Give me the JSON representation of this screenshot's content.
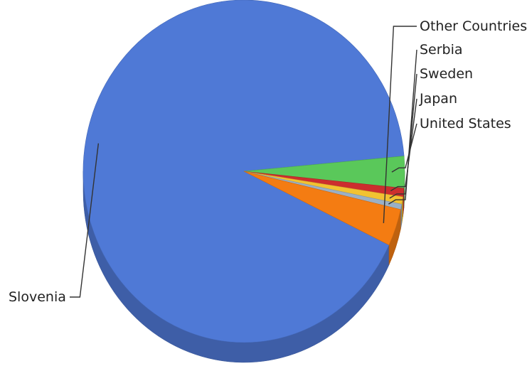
{
  "chart_data": {
    "type": "pie",
    "title": "",
    "slices": [
      {
        "name": "Slovenia",
        "value": 91.5,
        "color": "#4f79d6"
      },
      {
        "name": "United States",
        "value": 3.0,
        "color": "#5ac85a"
      },
      {
        "name": "Japan",
        "value": 0.8,
        "color": "#cc2e2e"
      },
      {
        "name": "Sweden",
        "value": 0.7,
        "color": "#f2c232"
      },
      {
        "name": "Serbia",
        "value": 0.5,
        "color": "#9ab0c6"
      },
      {
        "name": "Other Countries",
        "value": 3.5,
        "color": "#f47c12"
      }
    ],
    "legend": "none",
    "labels_placement": "outside-with-leader-lines"
  }
}
